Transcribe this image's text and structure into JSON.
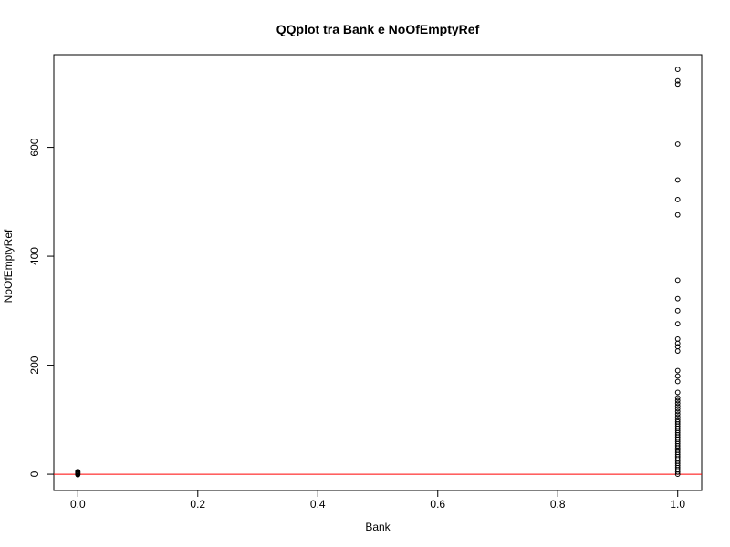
{
  "chart_data": {
    "type": "scatter",
    "title": "QQplot tra Bank e NoOfEmptyRef",
    "xlabel": "Bank",
    "ylabel": "NoOfEmptyRef",
    "xlim": [
      -0.04,
      1.04
    ],
    "ylim": [
      -30,
      770
    ],
    "x_ticks": [
      0.0,
      0.2,
      0.4,
      0.6,
      0.8,
      1.0
    ],
    "x_tick_labels": [
      "0.0",
      "0.2",
      "0.4",
      "0.6",
      "0.8",
      "1.0"
    ],
    "y_ticks": [
      0,
      200,
      400,
      600
    ],
    "y_tick_labels": [
      "0",
      "200",
      "400",
      "600"
    ],
    "grid": false,
    "marker": "open-circle",
    "point_color": "#000000",
    "reference_line": {
      "type": "horizontal",
      "y": 0,
      "color": "#ff0000"
    },
    "series": [
      {
        "points": [
          [
            0,
            0
          ],
          [
            0,
            1
          ],
          [
            0,
            2
          ],
          [
            0,
            3
          ],
          [
            0,
            4
          ],
          [
            0,
            5
          ],
          [
            0,
            -1
          ],
          [
            1,
            743
          ],
          [
            1,
            722
          ],
          [
            1,
            716
          ],
          [
            1,
            606
          ],
          [
            1,
            540
          ],
          [
            1,
            504
          ],
          [
            1,
            476
          ],
          [
            1,
            356
          ],
          [
            1,
            322
          ],
          [
            1,
            300
          ],
          [
            1,
            276
          ],
          [
            1,
            248
          ],
          [
            1,
            240
          ],
          [
            1,
            234
          ],
          [
            1,
            226
          ],
          [
            1,
            190
          ],
          [
            1,
            180
          ],
          [
            1,
            170
          ],
          [
            1,
            150
          ],
          [
            1,
            140
          ],
          [
            1,
            135
          ],
          [
            1,
            130
          ],
          [
            1,
            125
          ],
          [
            1,
            120
          ],
          [
            1,
            115
          ],
          [
            1,
            110
          ],
          [
            1,
            105
          ],
          [
            1,
            100
          ],
          [
            1,
            96
          ],
          [
            1,
            92
          ],
          [
            1,
            88
          ],
          [
            1,
            84
          ],
          [
            1,
            80
          ],
          [
            1,
            76
          ],
          [
            1,
            72
          ],
          [
            1,
            68
          ],
          [
            1,
            64
          ],
          [
            1,
            60
          ],
          [
            1,
            56
          ],
          [
            1,
            52
          ],
          [
            1,
            48
          ],
          [
            1,
            44
          ],
          [
            1,
            40
          ],
          [
            1,
            36
          ],
          [
            1,
            32
          ],
          [
            1,
            28
          ],
          [
            1,
            24
          ],
          [
            1,
            20
          ],
          [
            1,
            16
          ],
          [
            1,
            12
          ],
          [
            1,
            8
          ],
          [
            1,
            4
          ],
          [
            1,
            0
          ]
        ]
      }
    ]
  }
}
